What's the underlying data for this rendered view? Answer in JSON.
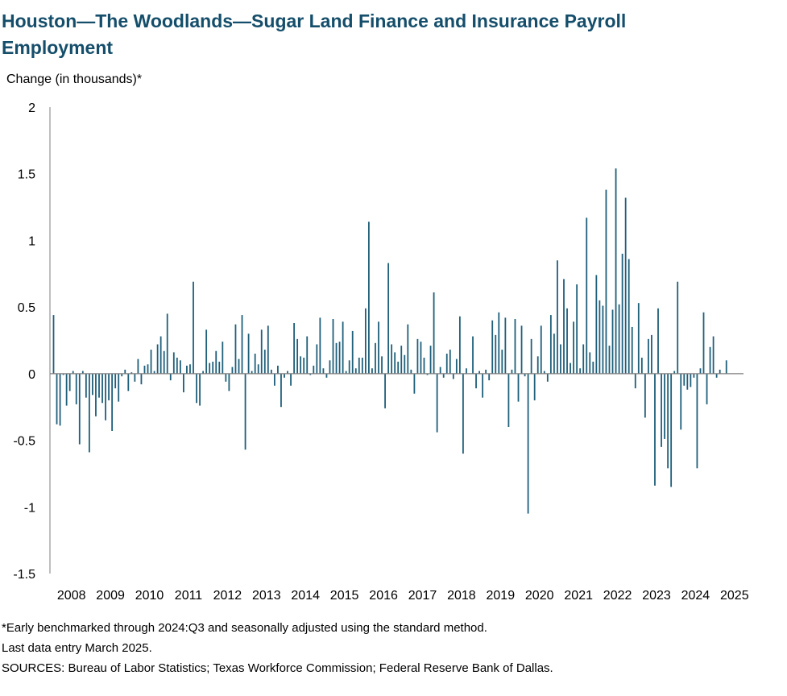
{
  "title": "Houston—The Woodlands—Sugar Land Finance and Insurance Payroll Employment",
  "footnotes": {
    "note": "*Early benchmarked through 2024:Q3 and seasonally adjusted using the standard method.",
    "last_entry": "Last data entry March 2025.",
    "sources": "SOURCES: Bureau of Labor Statistics; Texas Workforce Commission; Federal Reserve Bank of Dallas."
  },
  "colors": {
    "title": "#154e6b",
    "bars": "#1f5f7a",
    "axis": "#7f7f7f"
  },
  "chart_data": {
    "type": "bar",
    "ylabel": "Change (in thousands)*",
    "ylim": [
      -1.5,
      2
    ],
    "yticks": [
      -1.5,
      -1,
      -0.5,
      0,
      0.5,
      1,
      1.5,
      2
    ],
    "ytick_labels": [
      "-1.5",
      "-1",
      "-0.5",
      "0",
      "0.5",
      "1",
      "1.5",
      "2"
    ],
    "x_tick_labels": [
      "2008",
      "2009",
      "2010",
      "2011",
      "2012",
      "2013",
      "2014",
      "2015",
      "2016",
      "2017",
      "2018",
      "2019",
      "2020",
      "2021",
      "2022",
      "2023",
      "2024",
      "2025"
    ],
    "x_start": "2008-01",
    "frequency": "monthly",
    "grid": false,
    "legend": "none",
    "values": [
      0.44,
      -0.38,
      -0.39,
      -0.01,
      -0.24,
      -0.13,
      0.02,
      -0.23,
      -0.53,
      0.02,
      -0.18,
      -0.59,
      -0.16,
      -0.32,
      -0.18,
      -0.22,
      -0.35,
      -0.2,
      -0.43,
      -0.11,
      -0.21,
      -0.02,
      0.03,
      -0.13,
      0.01,
      -0.06,
      0.11,
      -0.08,
      0.06,
      0.07,
      0.18,
      0.02,
      0.22,
      0.28,
      0.17,
      0.45,
      -0.05,
      0.16,
      0.12,
      0.1,
      -0.14,
      0.06,
      0.07,
      0.69,
      -0.22,
      -0.24,
      0.02,
      0.33,
      0.08,
      0.09,
      0.17,
      0.09,
      0.24,
      -0.06,
      -0.13,
      0.05,
      0.37,
      0.11,
      0.44,
      -0.57,
      0.3,
      0.02,
      0.15,
      0.07,
      0.33,
      0.18,
      0.36,
      0.03,
      -0.09,
      0.06,
      -0.25,
      -0.03,
      0.02,
      -0.09,
      0.38,
      0.26,
      0.13,
      0.12,
      0.28,
      -0.01,
      0.06,
      0.22,
      0.42,
      0.04,
      -0.03,
      0.1,
      0.41,
      0.23,
      0.24,
      0.39,
      0.02,
      0.1,
      0.32,
      0.04,
      0.12,
      0.12,
      0.49,
      1.14,
      0.04,
      0.23,
      0.39,
      0.13,
      -0.26,
      0.83,
      0.22,
      0.16,
      0.09,
      0.21,
      0.14,
      0.37,
      0.03,
      -0.15,
      0.26,
      0.24,
      0.12,
      -0.01,
      0.21,
      0.61,
      -0.44,
      0.05,
      -0.03,
      0.15,
      0.18,
      -0.04,
      0.11,
      0.43,
      -0.6,
      0.04,
      0.0,
      0.28,
      -0.11,
      0.02,
      -0.18,
      0.03,
      -0.05,
      0.4,
      0.29,
      0.46,
      0.18,
      0.42,
      -0.4,
      0.03,
      0.41,
      -0.21,
      0.36,
      -0.02,
      -1.05,
      0.26,
      -0.2,
      0.13,
      0.36,
      0.02,
      -0.06,
      0.44,
      0.3,
      0.85,
      0.22,
      0.71,
      0.49,
      0.08,
      0.39,
      0.67,
      0.04,
      0.22,
      1.17,
      0.16,
      0.09,
      0.74,
      0.55,
      0.51,
      1.38,
      0.21,
      0.48,
      1.54,
      0.52,
      0.9,
      1.32,
      0.86,
      0.35,
      -0.11,
      0.53,
      0.12,
      -0.33,
      0.26,
      0.29,
      -0.84,
      0.49,
      -0.55,
      -0.49,
      -0.71,
      -0.85,
      0.02,
      0.69,
      -0.42,
      -0.09,
      -0.12,
      -0.1,
      -0.03,
      -0.71,
      0.04,
      0.46,
      -0.23,
      0.2,
      0.28,
      -0.03,
      0.03,
      0.0,
      0.1
    ]
  }
}
